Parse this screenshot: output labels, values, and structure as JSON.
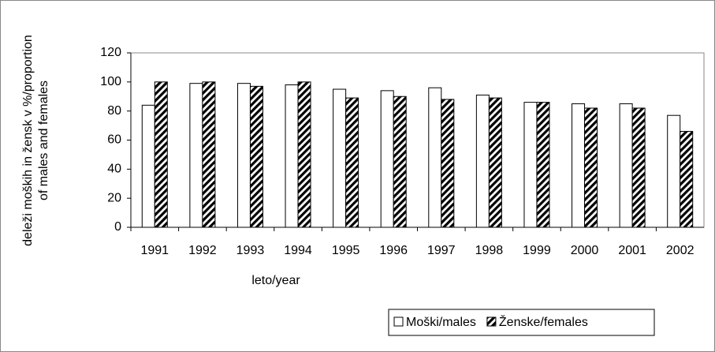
{
  "chart_data": {
    "type": "bar",
    "ylabel": [
      "deleži moških in žensk v %/proportion",
      "of males and females"
    ],
    "xlabel": "leto/year",
    "categories": [
      "1991",
      "1992",
      "1993",
      "1994",
      "1995",
      "1996",
      "1997",
      "1998",
      "1999",
      "2000",
      "2001",
      "2002"
    ],
    "series": [
      {
        "name": "Moški/males",
        "color": "#ffffff",
        "values": [
          84,
          99,
          99,
          98,
          95,
          94,
          96,
          91,
          86,
          85,
          85,
          77
        ]
      },
      {
        "name": "Ženske/females",
        "color": "#000000",
        "pattern": "hatch",
        "values": [
          100,
          100,
          97,
          100,
          89,
          90,
          88,
          89,
          86,
          82,
          82,
          66
        ]
      }
    ],
    "ylim": [
      0,
      120
    ],
    "yticks": [
      0,
      20,
      40,
      60,
      80,
      100,
      120
    ],
    "grid": false
  }
}
